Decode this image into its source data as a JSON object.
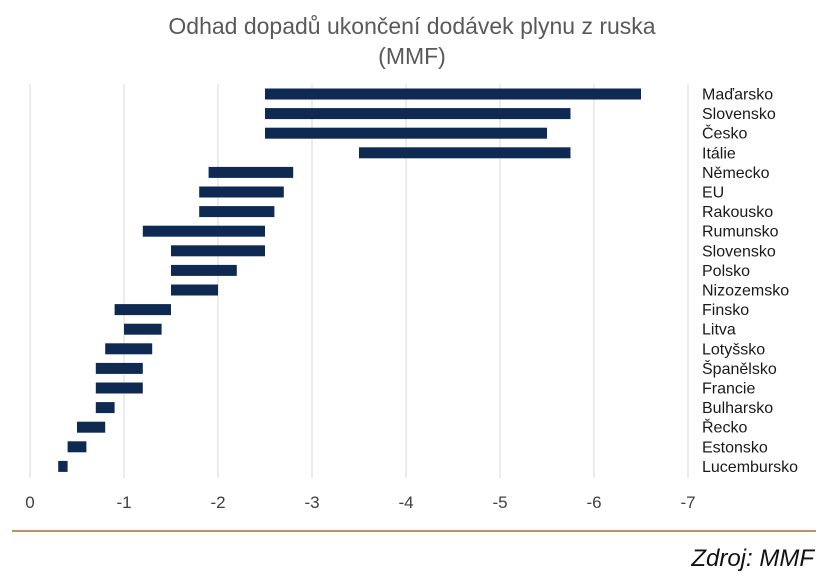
{
  "chart_data": {
    "type": "bar",
    "orientation": "horizontal-range",
    "title_lines": [
      "Odhad dopadů ukončení dodávek plynu z ruska",
      "(MMF)"
    ],
    "categories": [
      "Maďarsko",
      "Slovensko",
      "Česko",
      "Itálie",
      "Německo",
      "EU",
      "Rakousko",
      "Rumunsko",
      "Slovensko",
      "Polsko",
      "Nizozemsko",
      "Finsko",
      "Litva",
      "Lotyšsko",
      "Španělsko",
      "Francie",
      "Bulharsko",
      "Řecko",
      "Estonsko",
      "Lucembursko"
    ],
    "ranges": [
      [
        -2.5,
        -6.5
      ],
      [
        -2.5,
        -5.75
      ],
      [
        -2.5,
        -5.5
      ],
      [
        -3.5,
        -5.75
      ],
      [
        -1.9,
        -2.8
      ],
      [
        -1.8,
        -2.7
      ],
      [
        -1.8,
        -2.6
      ],
      [
        -1.2,
        -2.5
      ],
      [
        -1.5,
        -2.5
      ],
      [
        -1.5,
        -2.2
      ],
      [
        -1.5,
        -2.0
      ],
      [
        -0.9,
        -1.5
      ],
      [
        -1.0,
        -1.4
      ],
      [
        -0.8,
        -1.3
      ],
      [
        -0.7,
        -1.2
      ],
      [
        -0.7,
        -1.2
      ],
      [
        -0.7,
        -0.9
      ],
      [
        -0.5,
        -0.8
      ],
      [
        -0.4,
        -0.6
      ],
      [
        -0.3,
        -0.4
      ]
    ],
    "x_ticks": [
      "0",
      "-1",
      "-2",
      "-3",
      "-4",
      "-5",
      "-6",
      "-7"
    ],
    "xlim": [
      0,
      -7
    ],
    "x_reversed": true,
    "grid": "vertical",
    "bar_color": "#0f2a52",
    "grid_color": "#d9d9d9",
    "source": "Zdroj: MMF",
    "source_rule_color": "#b06a2a"
  }
}
